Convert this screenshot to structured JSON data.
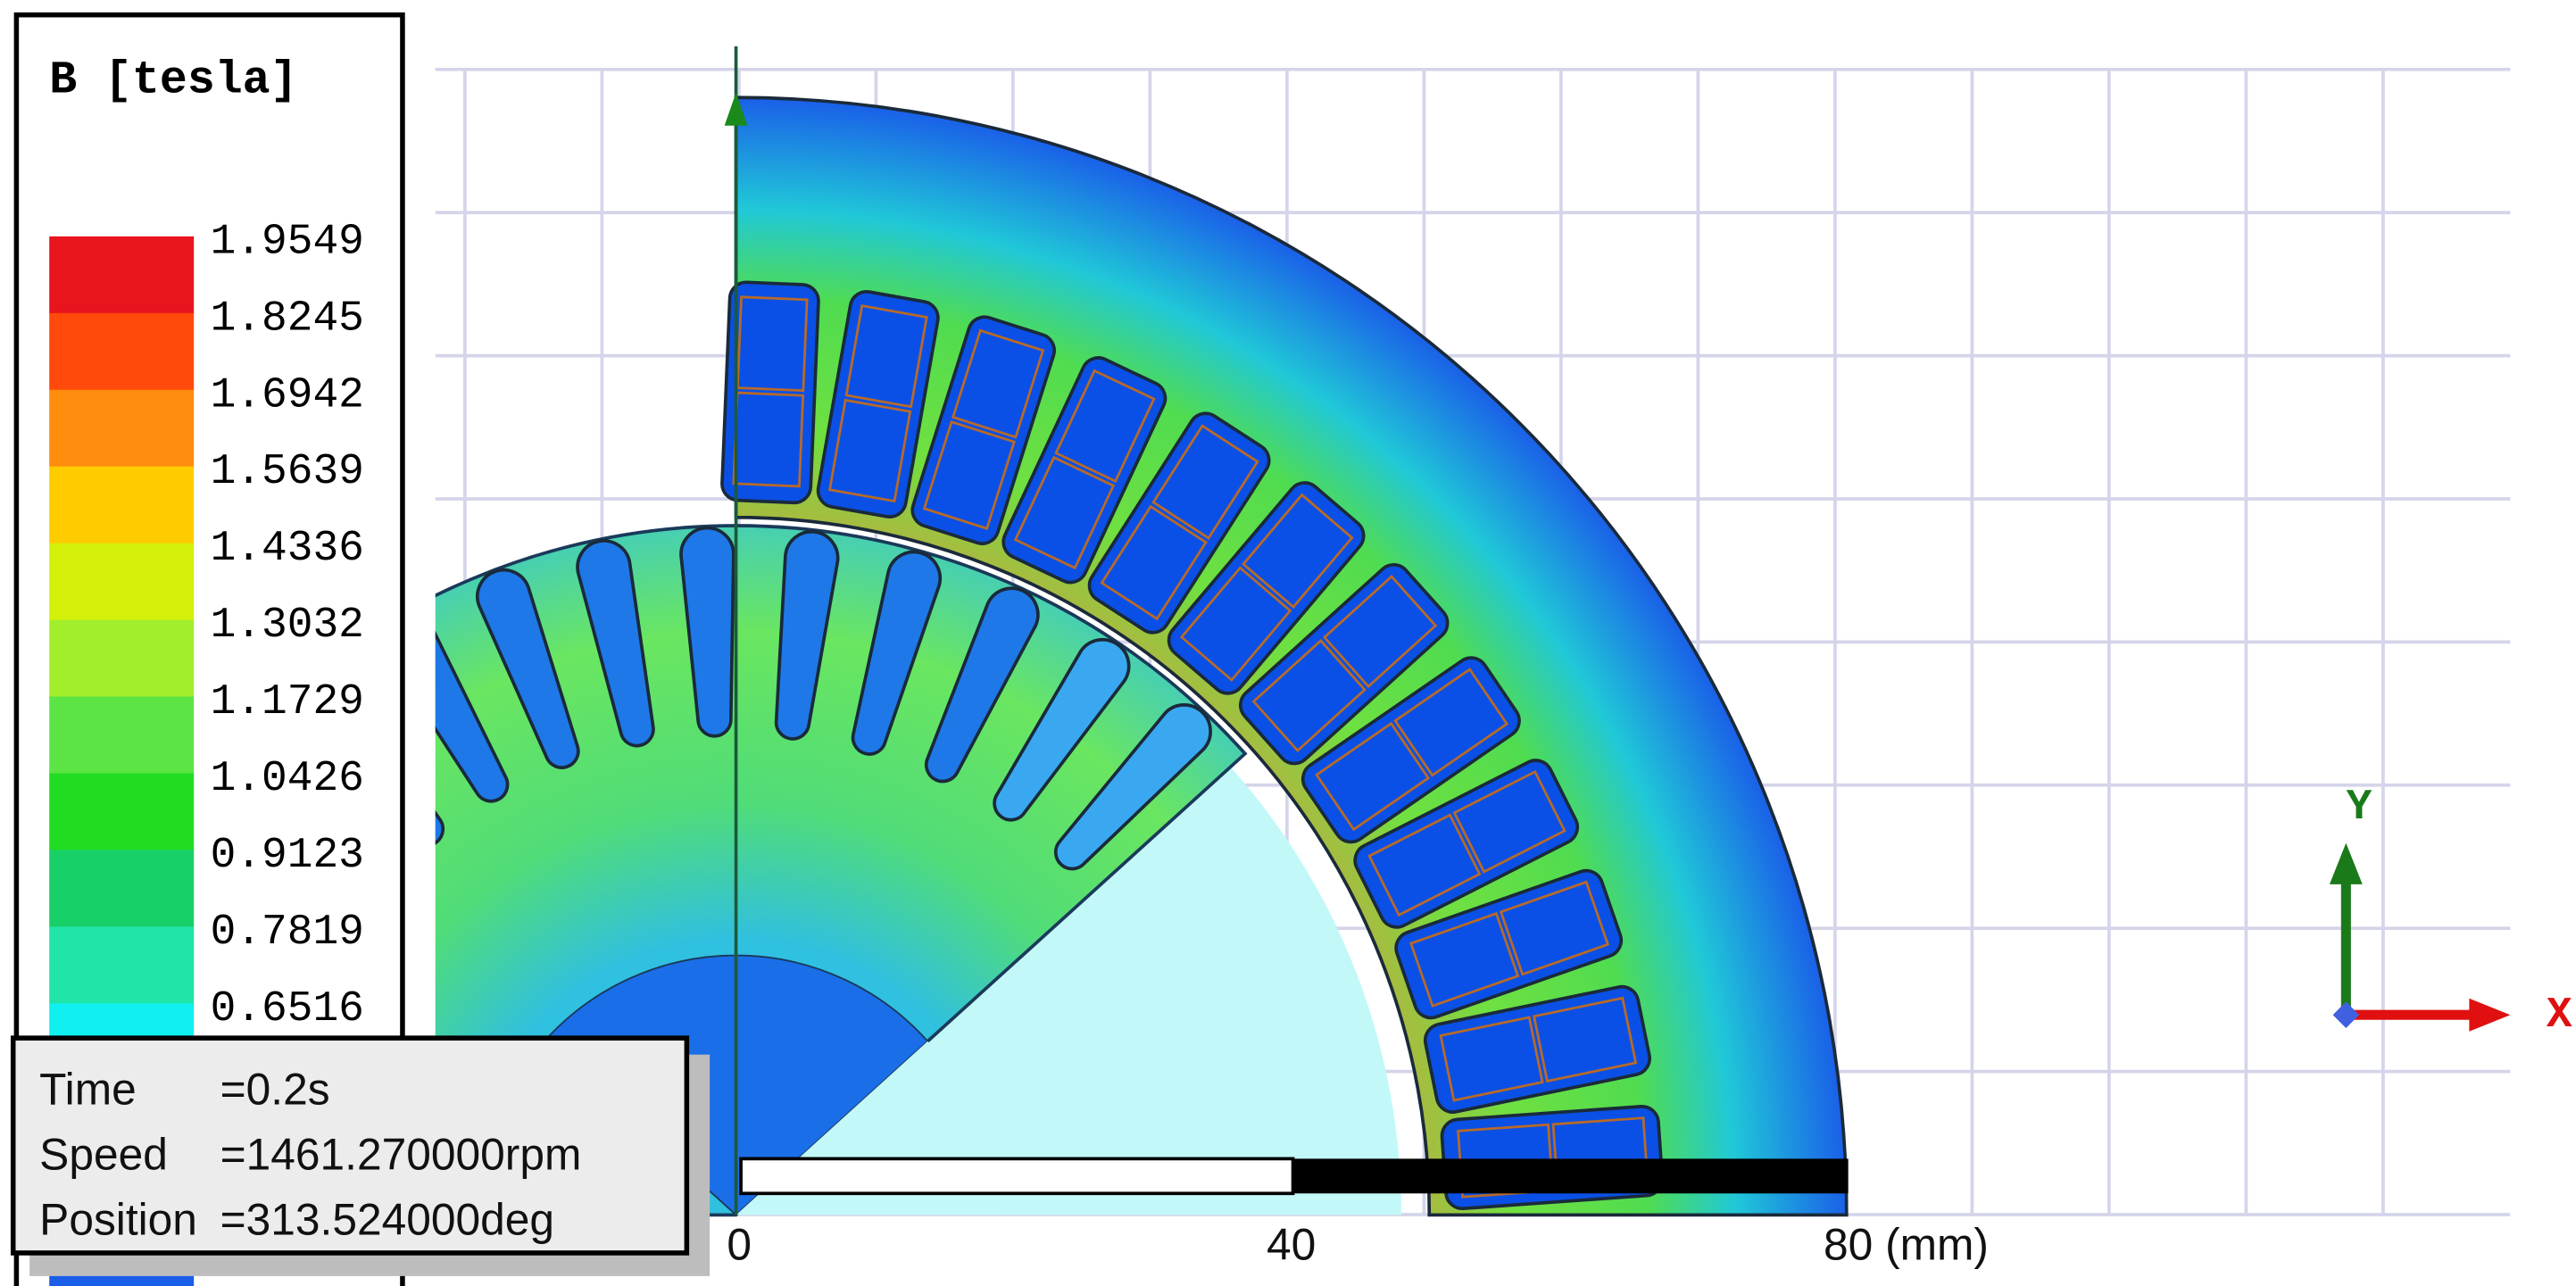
{
  "legend": {
    "title": "B [tesla]",
    "items": [
      {
        "label": "1.9549",
        "color": "#e8141e"
      },
      {
        "label": "1.8245",
        "color": "#ff4a0c"
      },
      {
        "label": "1.6942",
        "color": "#ff8c0c"
      },
      {
        "label": "1.5639",
        "color": "#ffcc00"
      },
      {
        "label": "1.4336",
        "color": "#d4f00a"
      },
      {
        "label": "1.3032",
        "color": "#a2ee2c"
      },
      {
        "label": "1.1729",
        "color": "#5ce444"
      },
      {
        "label": "1.0426",
        "color": "#22dc22"
      },
      {
        "label": "0.9123",
        "color": "#18d068"
      },
      {
        "label": "0.7819",
        "color": "#20e4a8"
      },
      {
        "label": "0.6516",
        "color": "#10f0f0"
      }
    ]
  },
  "info": {
    "lines": [
      {
        "label": "Time",
        "value": "=0.2s"
      },
      {
        "label": "Speed",
        "value": "=1461.270000rpm"
      },
      {
        "label": "Position",
        "value": "=313.524000deg"
      }
    ]
  },
  "scale": {
    "ticks": [
      "0",
      "40",
      "80 (mm)"
    ]
  },
  "axes": {
    "x": "X",
    "y": "Y"
  }
}
